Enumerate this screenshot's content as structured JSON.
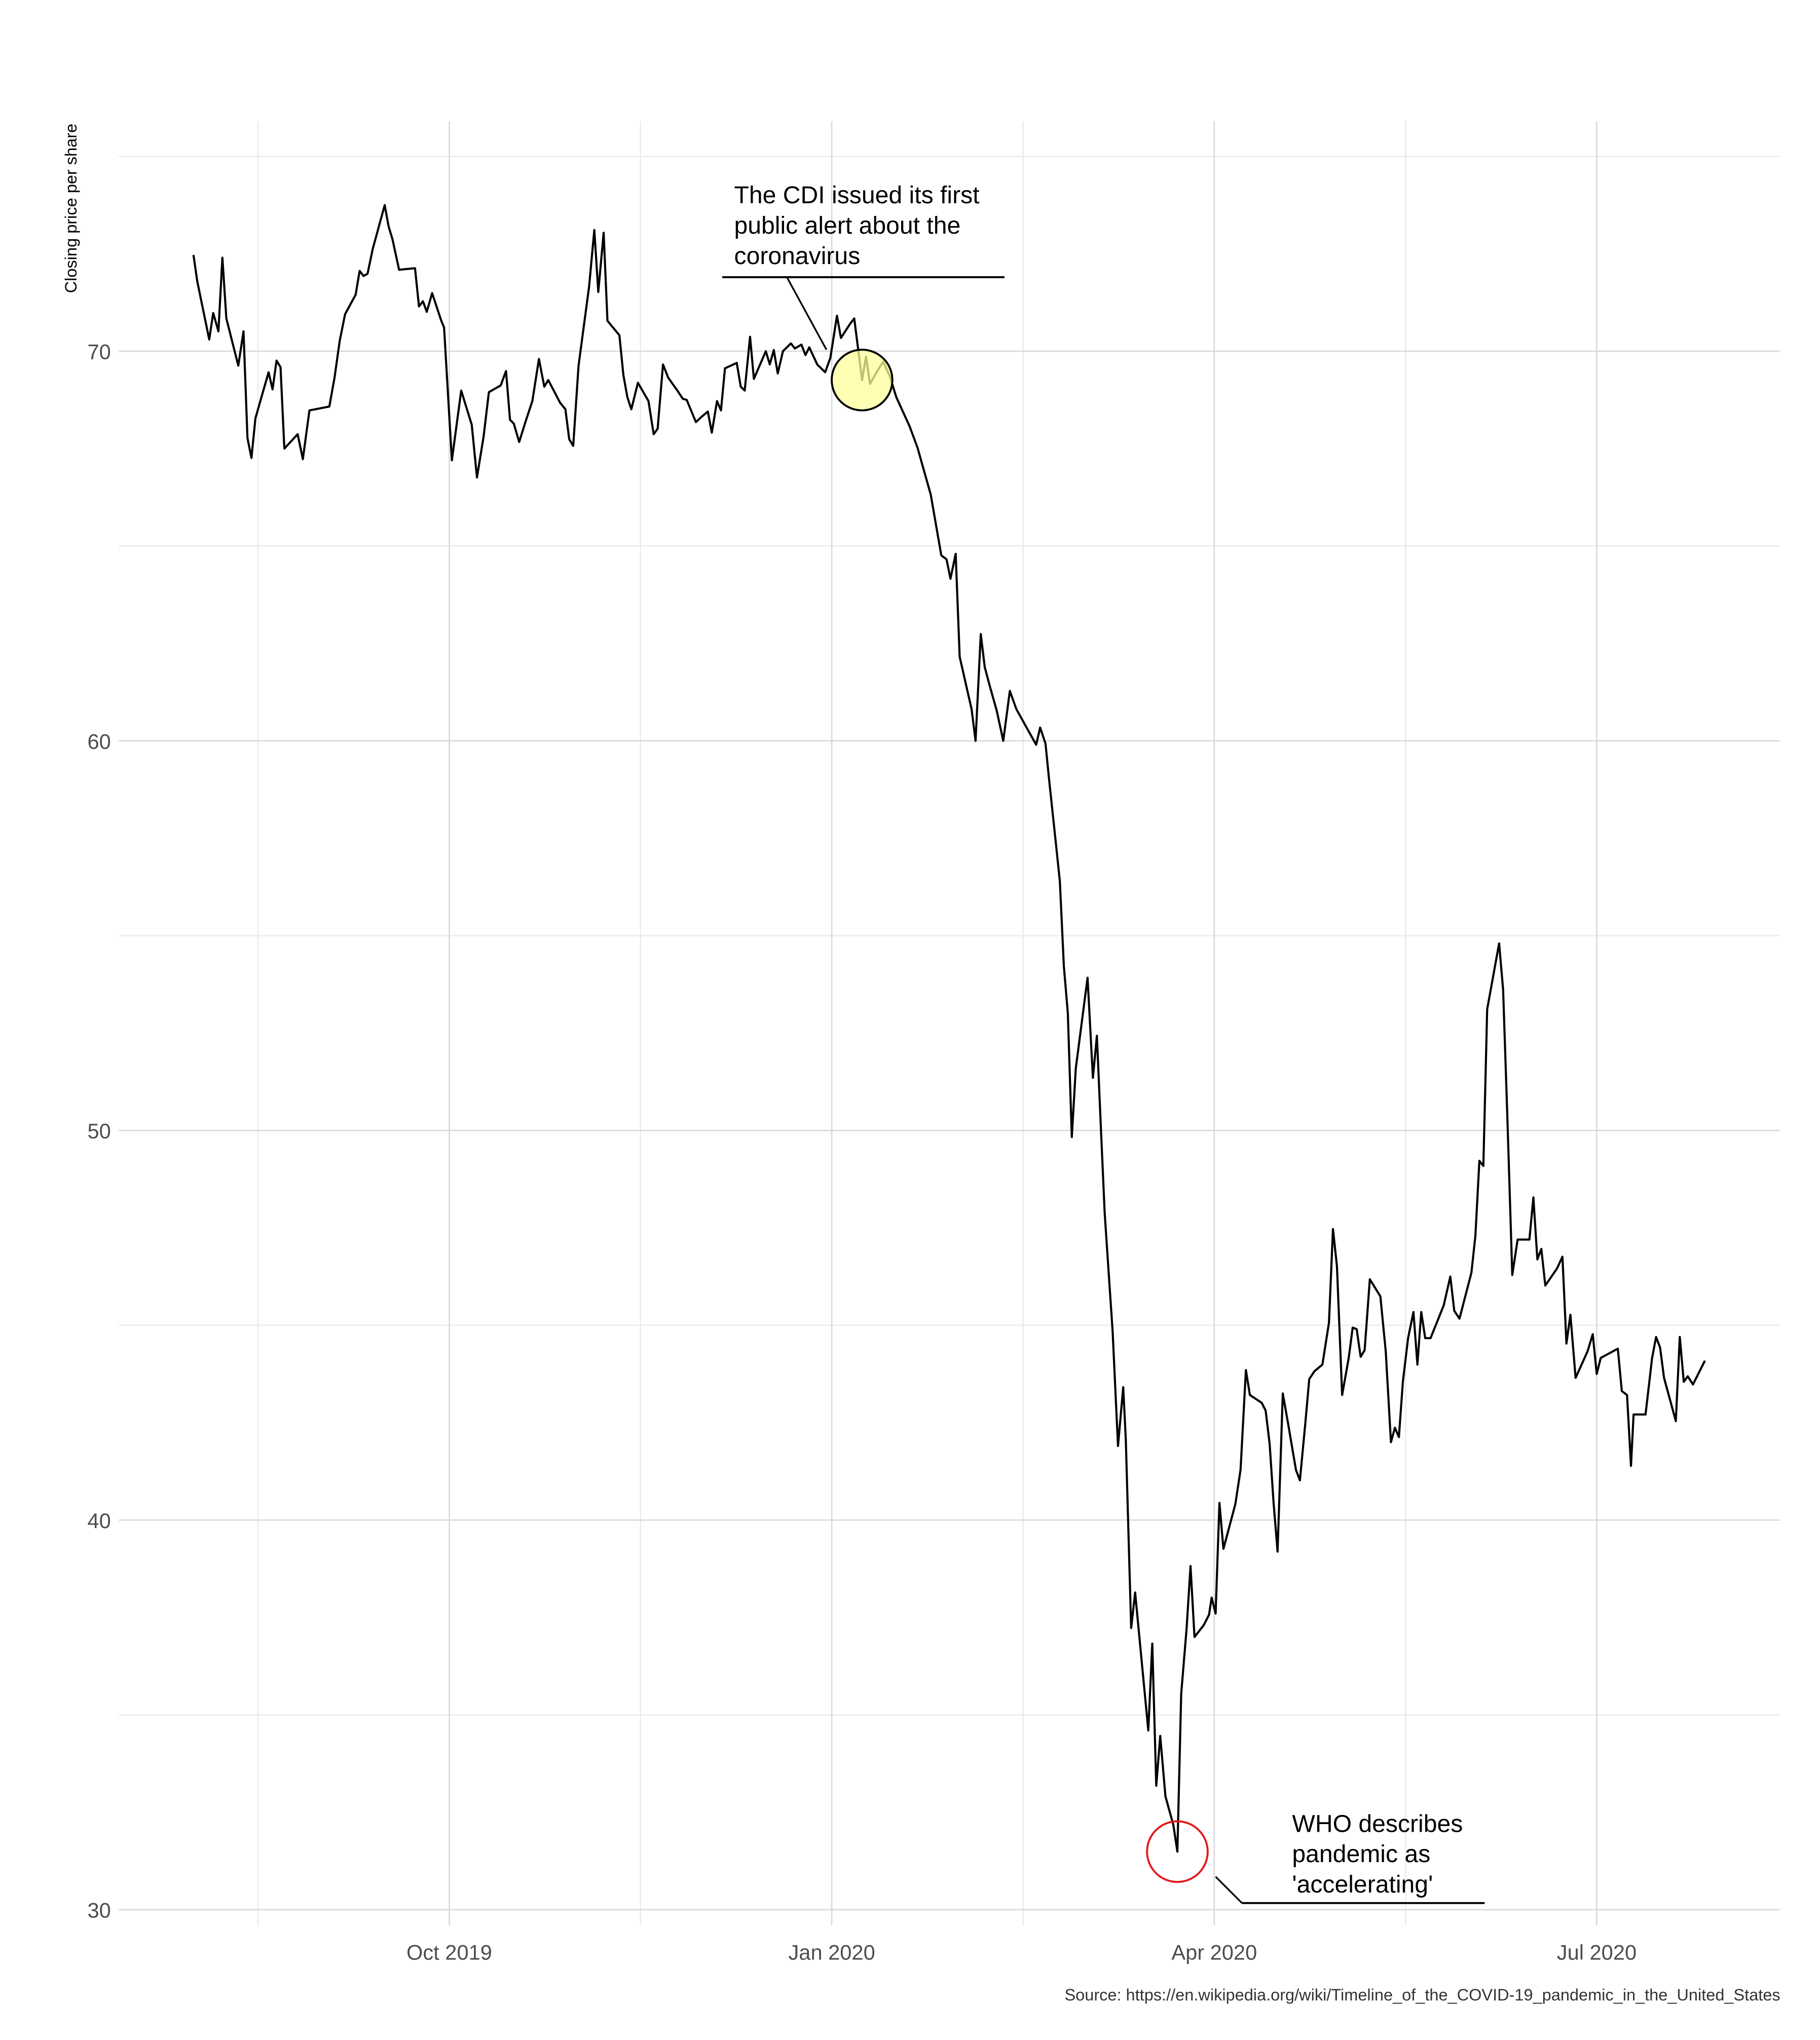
{
  "chart_data": {
    "type": "line",
    "ylabel": "Closing price per share",
    "source": "Source: https://en.wikipedia.org/wiki/Timeline_of_the_COVID-19_pandemic_in_the_United_States",
    "color": "#000000",
    "grid": true,
    "xlim": [
      2019.534,
      2020.62
    ],
    "ylim": [
      29.6,
      75.9
    ],
    "xticks": [
      {
        "value": 2019.75,
        "label": "Oct 2019"
      },
      {
        "value": 2020,
        "label": "Jan 2020"
      },
      {
        "value": 2020.25,
        "label": "Apr 2020"
      },
      {
        "value": 2020.5,
        "label": "Jul 2020"
      }
    ],
    "minor_xticks": [
      2019.625,
      2019.875,
      2020.125,
      2020.375
    ],
    "yticks": [
      30,
      40,
      50,
      60,
      70
    ],
    "minor_yticks": [
      35,
      45,
      55,
      65,
      75
    ],
    "x": [
      2019.5828,
      2019.5853,
      2019.5931,
      2019.5957,
      2019.5991,
      2019.6017,
      2019.6043,
      2019.6121,
      2019.6155,
      2019.6181,
      2019.6207,
      2019.6233,
      2019.6319,
      2019.6345,
      2019.6371,
      2019.6397,
      2019.6422,
      2019.6509,
      2019.6543,
      2019.6586,
      2019.6716,
      2019.675,
      2019.6784,
      2019.6819,
      2019.6888,
      2019.6914,
      2019.694,
      2019.6966,
      2019.7,
      2019.7078,
      2019.7103,
      2019.7129,
      2019.7172,
      2019.7276,
      2019.7302,
      2019.7328,
      2019.7353,
      2019.7388,
      2019.7448,
      2019.7466,
      2019.7517,
      2019.7578,
      2019.7647,
      2019.7681,
      2019.7724,
      2019.7759,
      2019.7836,
      2019.7871,
      2019.7897,
      2019.7922,
      2019.7957,
      2019.8,
      2019.8043,
      2019.8086,
      2019.8121,
      2019.8147,
      2019.8224,
      2019.8259,
      2019.8284,
      2019.831,
      2019.8345,
      2019.8414,
      2019.8448,
      2019.8474,
      2019.8509,
      2019.8534,
      2019.8612,
      2019.8638,
      2019.8664,
      2019.869,
      2019.8733,
      2019.8802,
      2019.8836,
      2019.8862,
      2019.8897,
      2019.8931,
      2019.8991,
      2019.9026,
      2019.9052,
      2019.9112,
      2019.9147,
      2019.919,
      2019.9216,
      2019.925,
      2019.9276,
      2019.9302,
      2019.9379,
      2019.9405,
      2019.9431,
      2019.9466,
      2019.9491,
      2019.9569,
      2019.9595,
      2019.9621,
      2019.9647,
      2019.9681,
      2019.9733,
      2019.9759,
      2019.9802,
      2019.9828,
      2019.9853,
      2019.9905,
      2019.9957,
      2019.9991,
      2020.0034,
      2020.006,
      2020.0121,
      2020.0147,
      2020.0198,
      2020.0224,
      2020.025,
      2020.0293,
      2020.0336,
      2020.0379,
      2020.0422,
      2020.0509,
      2020.056,
      2020.0647,
      2020.0716,
      2020.075,
      2020.0776,
      2020.081,
      2020.0836,
      2020.0914,
      2020.094,
      2020.0974,
      2020.1,
      2020.1034,
      2020.1078,
      2020.1121,
      2020.1164,
      2020.1207,
      2020.1336,
      2020.1362,
      2020.1397,
      2020.1422,
      2020.1466,
      2020.1491,
      2020.1517,
      2020.1543,
      2020.1569,
      2020.1595,
      2020.1672,
      2020.1707,
      2020.1733,
      2020.1759,
      2020.1784,
      2020.1836,
      2020.1871,
      2020.1905,
      2020.1922,
      2020.1957,
      2020.1983,
      2020.2069,
      2020.2095,
      2020.2121,
      2020.2147,
      2020.2181,
      2020.2233,
      2020.2259,
      2020.2284,
      2020.2319,
      2020.2345,
      2020.2371,
      2020.2431,
      2020.2466,
      2020.2483,
      2020.2509,
      2020.2534,
      2020.256,
      2020.2638,
      2020.2672,
      2020.2707,
      2020.2733,
      2020.281,
      2020.2836,
      2020.2862,
      2020.2888,
      2020.2914,
      2020.2948,
      2020.2983,
      2020.3034,
      2020.306,
      2020.3095,
      2020.3121,
      2020.3155,
      2020.3207,
      2020.325,
      2020.3276,
      2020.3302,
      2020.3336,
      2020.3379,
      2020.3405,
      2020.3431,
      2020.3457,
      2020.3483,
      2020.3517,
      2020.3586,
      2020.3621,
      2020.3655,
      2020.3681,
      2020.3707,
      2020.3733,
      2020.3767,
      2020.3802,
      2020.3828,
      2020.3853,
      2020.3879,
      2020.3914,
      2020.4,
      2020.4043,
      2020.4069,
      2020.4103,
      2020.4181,
      2020.4207,
      2020.4233,
      2020.4259,
      2020.4284,
      2020.4362,
      2020.4388,
      2020.4414,
      2020.4448,
      2020.4483,
      2020.456,
      2020.4586,
      2020.4612,
      2020.4638,
      2020.4664,
      2020.4741,
      2020.4776,
      2020.4802,
      2020.4828,
      2020.4862,
      2020.494,
      2020.4974,
      2020.5,
      2020.5026,
      2020.5138,
      2020.5164,
      2020.5198,
      2020.5224,
      2020.5241,
      2020.5319,
      2020.5362,
      2020.5388,
      2020.5414,
      2020.544,
      2020.5517,
      2020.5543,
      2020.5569,
      2020.5595,
      2020.5629,
      2020.5707
    ],
    "values": [
      72.47,
      71.79,
      70.3,
      70.98,
      70.51,
      72.4,
      70.84,
      69.63,
      70.51,
      67.77,
      67.26,
      68.28,
      69.46,
      69.02,
      69.76,
      69.59,
      67.5,
      67.87,
      67.23,
      68.48,
      68.58,
      69.32,
      70.27,
      70.95,
      71.45,
      72.06,
      71.93,
      71.99,
      72.63,
      73.75,
      73.21,
      72.87,
      72.09,
      72.13,
      71.15,
      71.28,
      71.01,
      71.49,
      70.78,
      70.61,
      67.2,
      68.99,
      68.11,
      66.76,
      67.8,
      68.95,
      69.12,
      69.49,
      68.24,
      68.14,
      67.67,
      68.21,
      68.72,
      69.8,
      69.09,
      69.26,
      68.68,
      68.51,
      67.74,
      67.57,
      69.63,
      71.66,
      73.11,
      71.52,
      73.04,
      70.78,
      70.41,
      69.39,
      68.82,
      68.51,
      69.19,
      68.72,
      67.87,
      68.01,
      69.66,
      69.32,
      68.99,
      68.78,
      68.75,
      68.18,
      68.31,
      68.45,
      67.91,
      68.72,
      68.48,
      69.56,
      69.7,
      69.09,
      68.99,
      70.37,
      69.29,
      70,
      69.66,
      70.03,
      69.43,
      70,
      70.2,
      70.07,
      70.17,
      69.9,
      70.1,
      69.66,
      69.46,
      69.83,
      70.91,
      70.34,
      70.71,
      70.84,
      69.26,
      69.86,
      69.16,
      69.46,
      69.73,
      69.36,
      68.82,
      68.07,
      67.53,
      66.32,
      64.76,
      64.66,
      64.16,
      64.8,
      62.16,
      60.81,
      60,
      62.74,
      61.89,
      61.39,
      60.78,
      60,
      61.28,
      60.81,
      59.9,
      60.34,
      59.93,
      58.95,
      57.33,
      56.39,
      54.22,
      53.01,
      49.83,
      51.59,
      53.92,
      51.35,
      52.43,
      50.07,
      47.87,
      44.83,
      41.9,
      43.41,
      42.06,
      37.23,
      38.14,
      34.6,
      36.83,
      33.18,
      34.46,
      32.91,
      32.17,
      31.49,
      35.54,
      37.2,
      38.82,
      37,
      37.3,
      37.57,
      38.01,
      37.6,
      40.44,
      39.26,
      40.41,
      41.29,
      43.85,
      43.21,
      43.01,
      42.81,
      41.96,
      40.44,
      39.19,
      43.25,
      42.47,
      41.29,
      41.02,
      42.47,
      43.62,
      43.82,
      43.99,
      45.07,
      47.47,
      46.52,
      43.21,
      44.16,
      44.94,
      44.9,
      44.19,
      44.36,
      46.18,
      45.74,
      44.33,
      42,
      42.37,
      42.13,
      43.55,
      44.67,
      45.34,
      43.99,
      45.34,
      44.67,
      44.67,
      45.51,
      46.25,
      45.37,
      45.17,
      46.35,
      47.3,
      49.22,
      49.09,
      53.11,
      54.8,
      53.62,
      50.58,
      46.29,
      47.2,
      47.2,
      48.28,
      46.69,
      46.96,
      46.02,
      46.46,
      46.76,
      44.53,
      45.27,
      43.65,
      44.33,
      44.77,
      43.75,
      44.16,
      44.4,
      43.31,
      43.21,
      41.39,
      42.71,
      42.71,
      44.16,
      44.7,
      44.43,
      43.65,
      42.54,
      44.7,
      43.55,
      43.69,
      43.48,
      44.09
    ],
    "annotations": [
      {
        "lines": [
          "The CDI issued its first",
          "public alert about the",
          "coronavirus"
        ],
        "x": 2020.0198,
        "y": 69.26,
        "marker_fill": "#ffff99",
        "marker_stroke": "#000000"
      },
      {
        "lines": [
          "WHO describes",
          "pandemic as",
          "'accelerating'"
        ],
        "x": 2020.2259,
        "y": 31.49,
        "marker_fill": "none",
        "marker_stroke": "#e31a1c"
      }
    ]
  }
}
